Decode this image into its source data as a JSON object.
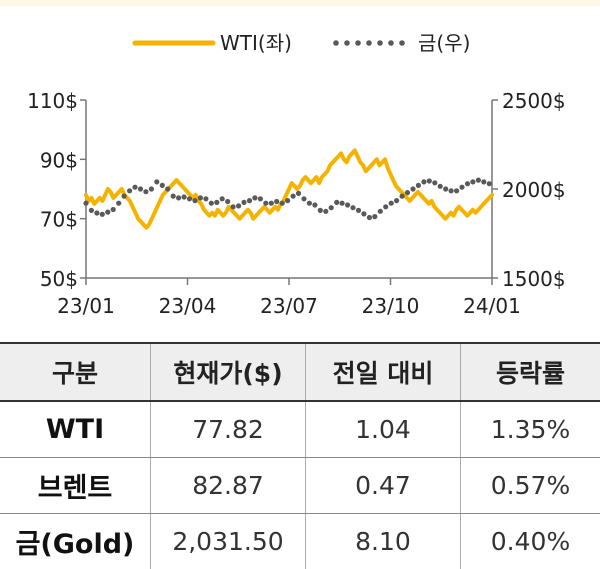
{
  "chart_data": {
    "type": "line",
    "legend_position": "top-center",
    "grid": false,
    "x_ticks": [
      "23/01",
      "23/04",
      "23/07",
      "23/10",
      "24/01"
    ],
    "y_left": {
      "ticks": [
        "50$",
        "70$",
        "90$",
        "110$"
      ],
      "range": [
        50,
        110
      ]
    },
    "y_right": {
      "ticks": [
        "1500$",
        "2000$",
        "2500$"
      ],
      "range": [
        1500,
        2500
      ]
    },
    "series": [
      {
        "name": "WTI(좌)",
        "axis": "left",
        "color": "#f5b300",
        "style": "solid",
        "values": [
          78,
          76,
          77,
          75,
          76,
          77,
          76,
          78,
          80,
          79,
          77,
          78,
          79,
          80,
          78,
          77,
          76,
          74,
          72,
          70,
          69,
          68,
          67,
          68,
          70,
          72,
          74,
          76,
          78,
          79,
          80,
          81,
          82,
          83,
          82,
          81,
          80,
          79,
          78,
          77,
          78,
          76,
          75,
          73,
          72,
          71,
          72,
          71,
          73,
          72,
          71,
          72,
          74,
          73,
          72,
          71,
          70,
          71,
          72,
          73,
          72,
          70,
          71,
          72,
          73,
          74,
          73,
          72,
          73,
          74,
          73,
          75,
          76,
          78,
          80,
          82,
          81,
          80,
          81,
          83,
          84,
          83,
          82,
          83,
          84,
          82,
          84,
          85,
          86,
          88,
          89,
          90,
          91,
          92,
          90,
          89,
          91,
          92,
          93,
          91,
          89,
          88,
          86,
          87,
          88,
          89,
          90,
          88,
          89,
          90,
          87,
          85,
          83,
          81,
          80,
          79,
          78,
          77,
          76,
          77,
          78,
          79,
          78,
          77,
          76,
          75,
          76,
          74,
          73,
          72,
          71,
          70,
          71,
          72,
          71,
          73,
          74,
          73,
          72,
          71,
          72,
          73,
          72,
          73,
          74,
          75,
          76,
          77,
          78
        ]
      },
      {
        "name": "금(우)",
        "axis": "right",
        "color": "#5a5a5a",
        "style": "dotted",
        "values": [
          1920,
          1900,
          1880,
          1870,
          1865,
          1860,
          1858,
          1862,
          1870,
          1875,
          1885,
          1900,
          1920,
          1940,
          1960,
          1975,
          1990,
          2000,
          2010,
          2015,
          2000,
          1995,
          1985,
          1980,
          2000,
          2020,
          2040,
          2030,
          2020,
          2010,
          2000,
          1985,
          1960,
          1940,
          1950,
          1960,
          1955,
          1950,
          1945,
          1940,
          1935,
          1940,
          1950,
          1960,
          1945,
          1930,
          1920,
          1915,
          1925,
          1935,
          1945,
          1950,
          1930,
          1910,
          1900,
          1895,
          1905,
          1915,
          1925,
          1930,
          1935,
          1945,
          1950,
          1955,
          1945,
          1935,
          1920,
          1920,
          1920,
          1925,
          1930,
          1925,
          1920,
          1925,
          1935,
          1945,
          1960,
          1980,
          1975,
          1960,
          1945,
          1930,
          1920,
          1915,
          1910,
          1900,
          1880,
          1870,
          1875,
          1885,
          1895,
          1910,
          1925,
          1930,
          1920,
          1915,
          1910,
          1900,
          1895,
          1890,
          1880,
          1870,
          1860,
          1850,
          1840,
          1835,
          1845,
          1860,
          1875,
          1890,
          1900,
          1910,
          1920,
          1925,
          1935,
          1950,
          1960,
          1970,
          1980,
          1990,
          2000,
          2010,
          2020,
          2030,
          2040,
          2045,
          2045,
          2040,
          2035,
          2025,
          2015,
          2005,
          2000,
          1995,
          1990,
          1985,
          1990,
          2000,
          2010,
          2020,
          2030,
          2035,
          2040,
          2045,
          2050,
          2048,
          2040,
          2035,
          2030,
          2025
        ]
      }
    ]
  },
  "table": {
    "headers": [
      "구분",
      "현재가($)",
      "전일 대비",
      "등락률"
    ],
    "rows": [
      [
        "WTI",
        "77.82",
        "1.04",
        "1.35%"
      ],
      [
        "브렌트",
        "82.87",
        "0.47",
        "0.57%"
      ],
      [
        "금(Gold)",
        "2,031.50",
        "8.10",
        "0.40%"
      ]
    ]
  }
}
